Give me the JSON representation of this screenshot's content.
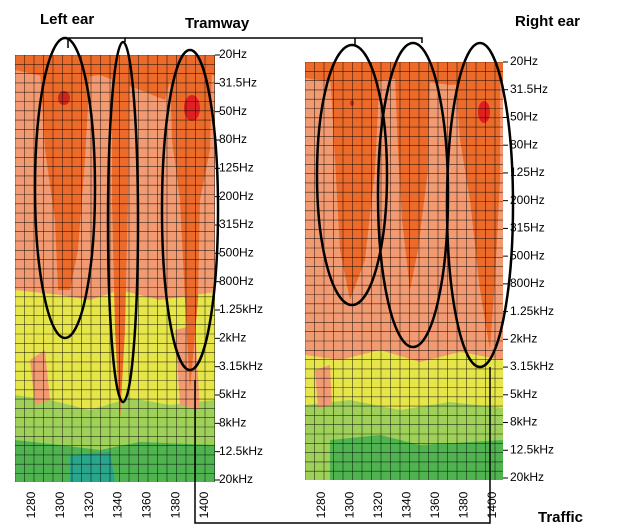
{
  "annotations": {
    "left_ear": "Left ear",
    "tramway": "Tramway",
    "right_ear": "Right ear",
    "traffic": "Traffic"
  },
  "panels": [
    {
      "frequency_labels": [
        "20Hz",
        "31.5Hz",
        "50Hz",
        "80Hz",
        "125Hz",
        "200Hz",
        "315Hz",
        "500Hz",
        "800Hz",
        "1.25kHz",
        "2kHz",
        "3.15kHz",
        "5kHz",
        "8kHz",
        "12.5kHz",
        "20kHz"
      ],
      "time_labels": [
        "1280",
        "1300",
        "1320",
        "1340",
        "1360",
        "1380",
        "1400"
      ]
    },
    {
      "frequency_labels": [
        "20Hz",
        "31.5Hz",
        "50Hz",
        "80Hz",
        "125Hz",
        "200Hz",
        "315Hz",
        "500Hz",
        "800Hz",
        "1.25kHz",
        "2kHz",
        "3.15kHz",
        "5kHz",
        "8kHz",
        "12.5kHz",
        "20kHz"
      ],
      "time_labels": [
        "1280",
        "1300",
        "1320",
        "1340",
        "1360",
        "1380",
        "1400"
      ]
    }
  ]
}
